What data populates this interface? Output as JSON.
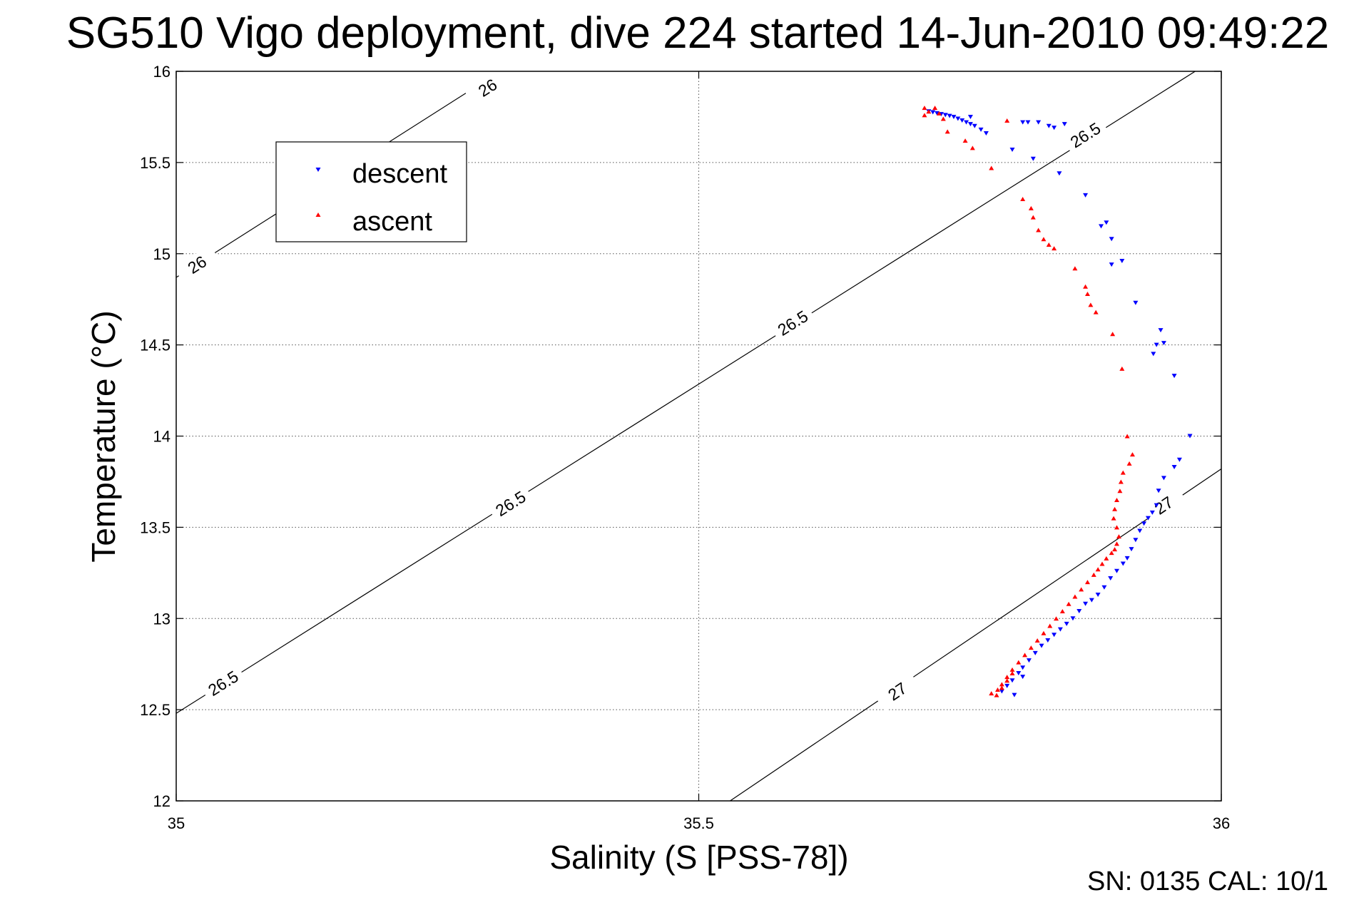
{
  "chart_data": {
    "type": "scatter",
    "title": "SG510 Vigo deployment, dive 224 started 14-Jun-2010 09:49:22",
    "xlabel": "Salinity (S [PSS-78])",
    "ylabel": "Temperature (°C)",
    "xlim": [
      35,
      36
    ],
    "ylim": [
      12,
      16
    ],
    "xticks": [
      35,
      35.5,
      36
    ],
    "yticks": [
      12,
      12.5,
      13,
      13.5,
      14,
      14.5,
      15,
      15.5,
      16
    ],
    "xtick_labels": [
      "35",
      "35.5",
      "36"
    ],
    "ytick_labels": [
      "12",
      "12.5",
      "13",
      "13.5",
      "14",
      "14.5",
      "15",
      "15.5",
      "16"
    ],
    "grid": true,
    "legend_position": "top-left",
    "footer_text": "SN: 0135  CAL: 10/1",
    "contours": [
      {
        "label": "26",
        "points": [
          [
            35,
            14.87
          ],
          [
            35.31,
            16.0
          ]
        ],
        "labels": [
          {
            "x": 35.02,
            "y": 14.94,
            "text": "26"
          },
          {
            "x": 35.298,
            "y": 15.91,
            "text": "26"
          }
        ]
      },
      {
        "label": "26.5",
        "points": [
          [
            35,
            12.48
          ],
          [
            35.975,
            16.0
          ]
        ],
        "labels": [
          {
            "x": 35.045,
            "y": 12.645,
            "text": "26.5"
          },
          {
            "x": 35.32,
            "y": 13.63,
            "text": "26.5"
          },
          {
            "x": 35.59,
            "y": 14.62,
            "text": "26.5"
          },
          {
            "x": 35.87,
            "y": 15.65,
            "text": "26.5"
          }
        ]
      },
      {
        "label": "27",
        "points": [
          [
            35.53,
            12.0
          ],
          [
            36.0,
            13.82
          ]
        ],
        "labels": [
          {
            "x": 35.69,
            "y": 12.6,
            "text": "27"
          },
          {
            "x": 35.945,
            "y": 13.62,
            "text": "27"
          }
        ]
      }
    ],
    "series": [
      {
        "name": "descent",
        "color": "#0000ff",
        "marker": "triangle-down",
        "points": [
          [
            35.72,
            15.78
          ],
          [
            35.724,
            15.775
          ],
          [
            35.728,
            15.77
          ],
          [
            35.732,
            15.765
          ],
          [
            35.736,
            15.76
          ],
          [
            35.74,
            15.755
          ],
          [
            35.744,
            15.75
          ],
          [
            35.748,
            15.74
          ],
          [
            35.752,
            15.73
          ],
          [
            35.756,
            15.72
          ],
          [
            35.76,
            15.71
          ],
          [
            35.764,
            15.7
          ],
          [
            35.77,
            15.68
          ],
          [
            35.775,
            15.66
          ],
          [
            35.76,
            15.75
          ],
          [
            35.81,
            15.72
          ],
          [
            35.825,
            15.72
          ],
          [
            35.835,
            15.7
          ],
          [
            35.84,
            15.69
          ],
          [
            35.85,
            15.71
          ],
          [
            35.8,
            15.57
          ],
          [
            35.82,
            15.52
          ],
          [
            35.815,
            15.72
          ],
          [
            35.845,
            15.44
          ],
          [
            35.87,
            15.32
          ],
          [
            35.885,
            15.15
          ],
          [
            35.89,
            15.17
          ],
          [
            35.895,
            15.08
          ],
          [
            35.895,
            14.94
          ],
          [
            35.905,
            14.96
          ],
          [
            35.918,
            14.73
          ],
          [
            35.938,
            14.5
          ],
          [
            35.935,
            14.45
          ],
          [
            35.942,
            14.58
          ],
          [
            35.945,
            14.51
          ],
          [
            35.955,
            14.33
          ],
          [
            35.97,
            14.0
          ],
          [
            35.96,
            13.87
          ],
          [
            35.955,
            13.83
          ],
          [
            35.945,
            13.77
          ],
          [
            35.94,
            13.7
          ],
          [
            35.938,
            13.62
          ],
          [
            35.934,
            13.58
          ],
          [
            35.93,
            13.55
          ],
          [
            35.926,
            13.52
          ],
          [
            35.922,
            13.48
          ],
          [
            35.918,
            13.43
          ],
          [
            35.914,
            13.38
          ],
          [
            35.91,
            13.33
          ],
          [
            35.906,
            13.3
          ],
          [
            35.9,
            13.26
          ],
          [
            35.894,
            13.22
          ],
          [
            35.888,
            13.17
          ],
          [
            35.882,
            13.13
          ],
          [
            35.876,
            13.1
          ],
          [
            35.87,
            13.08
          ],
          [
            35.864,
            13.04
          ],
          [
            35.858,
            13.0
          ],
          [
            35.852,
            12.97
          ],
          [
            35.846,
            12.94
          ],
          [
            35.84,
            12.91
          ],
          [
            35.834,
            12.88
          ],
          [
            35.828,
            12.85
          ],
          [
            35.822,
            12.81
          ],
          [
            35.816,
            12.77
          ],
          [
            35.81,
            12.73
          ],
          [
            35.806,
            12.7
          ],
          [
            35.8,
            12.66
          ],
          [
            35.795,
            12.63
          ],
          [
            35.79,
            12.6
          ],
          [
            35.802,
            12.58
          ],
          [
            35.81,
            12.68
          ]
        ]
      },
      {
        "name": "ascent",
        "color": "#ff0000",
        "marker": "triangle-up",
        "points": [
          [
            35.716,
            15.8
          ],
          [
            35.72,
            15.78
          ],
          [
            35.726,
            15.8
          ],
          [
            35.73,
            15.77
          ],
          [
            35.734,
            15.74
          ],
          [
            35.738,
            15.67
          ],
          [
            35.716,
            15.76
          ],
          [
            35.755,
            15.62
          ],
          [
            35.762,
            15.58
          ],
          [
            35.78,
            15.47
          ],
          [
            35.795,
            15.73
          ],
          [
            35.81,
            15.3
          ],
          [
            35.818,
            15.25
          ],
          [
            35.82,
            15.2
          ],
          [
            35.825,
            15.13
          ],
          [
            35.83,
            15.08
          ],
          [
            35.835,
            15.05
          ],
          [
            35.84,
            15.03
          ],
          [
            35.86,
            14.92
          ],
          [
            35.87,
            14.82
          ],
          [
            35.875,
            14.72
          ],
          [
            35.872,
            14.78
          ],
          [
            35.88,
            14.68
          ],
          [
            35.896,
            14.56
          ],
          [
            35.905,
            14.37
          ],
          [
            35.91,
            14.0
          ],
          [
            35.915,
            13.9
          ],
          [
            35.912,
            13.85
          ],
          [
            35.906,
            13.8
          ],
          [
            35.904,
            13.75
          ],
          [
            35.903,
            13.7
          ],
          [
            35.9,
            13.65
          ],
          [
            35.898,
            13.6
          ],
          [
            35.897,
            13.55
          ],
          [
            35.9,
            13.5
          ],
          [
            35.902,
            13.45
          ],
          [
            35.9,
            13.41
          ],
          [
            35.898,
            13.38
          ],
          [
            35.895,
            13.36
          ],
          [
            35.89,
            13.33
          ],
          [
            35.886,
            13.3
          ],
          [
            35.882,
            13.27
          ],
          [
            35.878,
            13.24
          ],
          [
            35.872,
            13.2
          ],
          [
            35.866,
            13.16
          ],
          [
            35.86,
            13.12
          ],
          [
            35.854,
            13.08
          ],
          [
            35.848,
            13.04
          ],
          [
            35.842,
            13.0
          ],
          [
            35.836,
            12.96
          ],
          [
            35.83,
            12.92
          ],
          [
            35.824,
            12.88
          ],
          [
            35.818,
            12.84
          ],
          [
            35.812,
            12.8
          ],
          [
            35.806,
            12.76
          ],
          [
            35.8,
            12.72
          ],
          [
            35.795,
            12.68
          ],
          [
            35.79,
            12.64
          ],
          [
            35.786,
            12.61
          ],
          [
            35.78,
            12.59
          ],
          [
            35.785,
            12.58
          ],
          [
            35.79,
            12.62
          ],
          [
            35.795,
            12.66
          ],
          [
            35.8,
            12.7
          ]
        ]
      }
    ]
  }
}
